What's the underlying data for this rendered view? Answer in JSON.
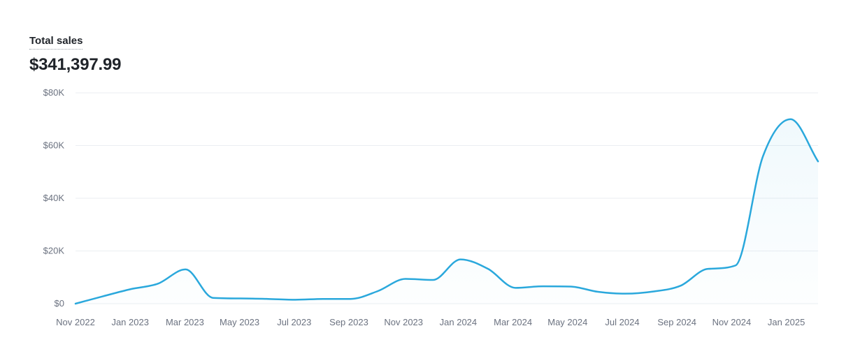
{
  "metric": {
    "label": "Total sales",
    "value": "$341,397.99"
  },
  "colors": {
    "line": "#2AA8DC",
    "grid": "#EBEEF2",
    "tick_text": "#6B7280"
  },
  "chart_data": {
    "type": "area",
    "ylim": [
      0,
      80000
    ],
    "y_ticks": [
      0,
      20000,
      40000,
      60000,
      80000
    ],
    "y_tick_labels": [
      "$0",
      "$20K",
      "$40K",
      "$60K",
      "$80K"
    ],
    "x_tick_labels": [
      "Nov 2022",
      "Jan 2023",
      "Mar 2023",
      "May 2023",
      "Jul 2023",
      "Sep 2023",
      "Nov 2023",
      "Jan 2024",
      "Mar 2024",
      "May 2024",
      "Jul 2024",
      "Sep 2024",
      "Nov 2024",
      "Jan 2025"
    ],
    "grid": true,
    "series": [
      {
        "x": [
          "2022-11-01",
          "2022-12-01",
          "2023-01-01",
          "2023-02-01",
          "2023-03-01",
          "2023-04-01",
          "2023-05-01",
          "2023-06-01",
          "2023-07-01",
          "2023-08-01",
          "2023-09-01",
          "2023-10-01",
          "2023-11-01",
          "2023-12-01",
          "2024-01-01",
          "2024-02-01",
          "2024-03-01",
          "2024-04-01",
          "2024-05-01",
          "2024-06-01",
          "2024-07-01",
          "2024-08-01",
          "2024-09-01",
          "2024-10-01",
          "2024-11-01",
          "2024-12-01",
          "2025-01-01",
          "2025-02-01"
        ],
        "values": [
          0,
          2800,
          5500,
          7600,
          13000,
          2200,
          2000,
          1800,
          1500,
          1800,
          1800,
          4800,
          9400,
          9000,
          16800,
          13200,
          6000,
          6600,
          6500,
          4500,
          3800,
          4600,
          6800,
          13200,
          14500,
          56000,
          70000,
          54000
        ]
      }
    ]
  }
}
